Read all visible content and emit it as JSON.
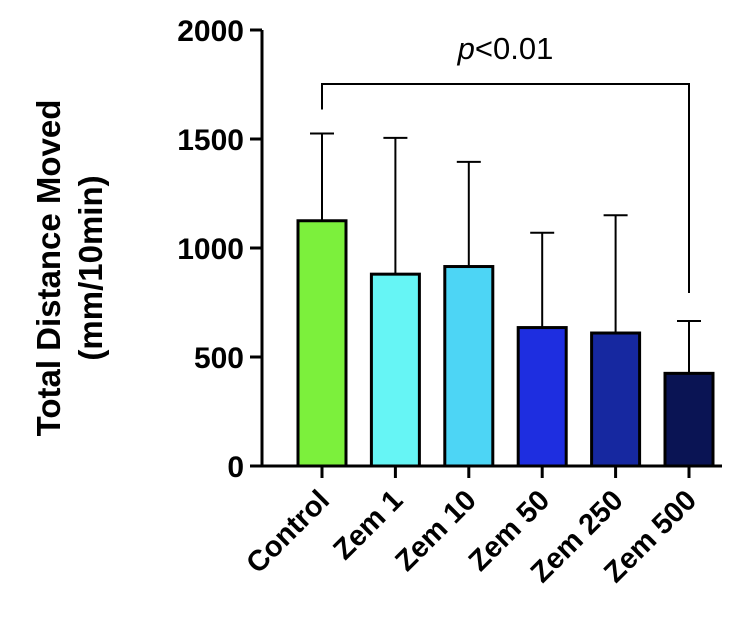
{
  "chart_data": {
    "type": "bar",
    "categories": [
      "Control",
      "Zem 1",
      "Zem 10",
      "Zem 50",
      "Zem 250",
      "Zem 500"
    ],
    "values": [
      1125,
      880,
      915,
      635,
      610,
      425
    ],
    "error_upper": [
      1525,
      1505,
      1395,
      1070,
      1150,
      665
    ],
    "colors": [
      "#7cf03c",
      "#66f5f5",
      "#4dd5f5",
      "#1e2ee0",
      "#1628a0",
      "#0a1454"
    ],
    "ylabel_line1": "Total Distance Moved",
    "ylabel_line2": "(mm/10min)",
    "yticks": [
      0,
      500,
      1000,
      1500,
      2000
    ],
    "ylim": [
      0,
      2000
    ],
    "annotation": {
      "p_symbol": "p",
      "text": "<0.01",
      "from_category": "Control",
      "to_category": "Zem 500"
    }
  }
}
